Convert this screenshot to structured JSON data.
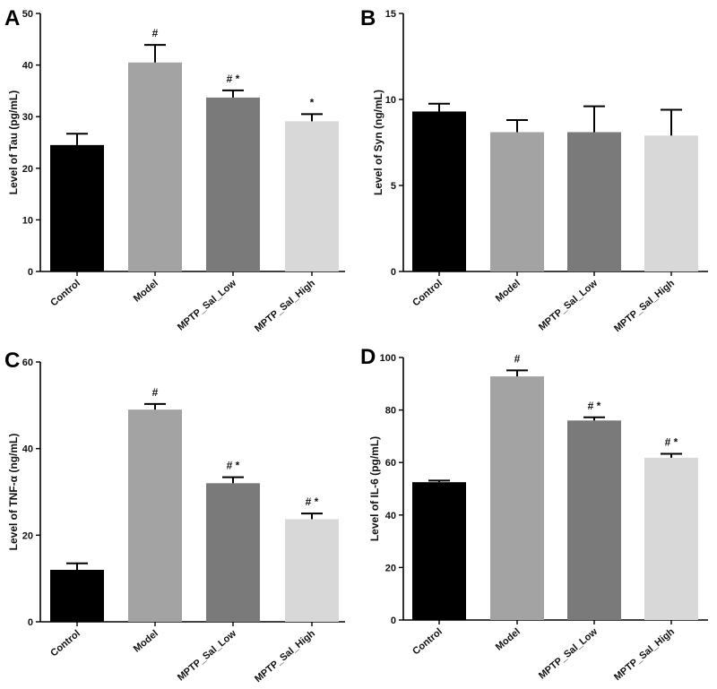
{
  "chart_data": [
    {
      "type": "bar",
      "panel": "A",
      "categories": [
        "Control",
        "Model",
        "MPTP_Sal_Low",
        "MPTP_Sal_High"
      ],
      "values": [
        24.5,
        40.5,
        33.7,
        29.1
      ],
      "errors": [
        2.2,
        3.4,
        1.4,
        1.4
      ],
      "annotations": [
        "",
        "#",
        "# *",
        "*"
      ],
      "colors": [
        "#000000",
        "#a3a3a3",
        "#7a7a7a",
        "#d8d8d8"
      ],
      "ylabel": "Level of Tau (pg/mL)",
      "ylim": [
        0,
        50
      ],
      "yticks": [
        0,
        10,
        20,
        30,
        40,
        50
      ]
    },
    {
      "type": "bar",
      "panel": "B",
      "categories": [
        "Control",
        "Model",
        "MPTP_Sal_Low",
        "MPTP_Sal_High"
      ],
      "values": [
        9.3,
        8.1,
        8.1,
        7.9
      ],
      "errors": [
        0.45,
        0.7,
        1.5,
        1.5
      ],
      "annotations": [
        "",
        "",
        "",
        ""
      ],
      "colors": [
        "#000000",
        "#a3a3a3",
        "#7a7a7a",
        "#d8d8d8"
      ],
      "ylabel": "Level of Syn (ng/mL)",
      "ylim": [
        0,
        15
      ],
      "yticks": [
        0,
        5,
        10,
        15
      ]
    },
    {
      "type": "bar",
      "panel": "C",
      "categories": [
        "Control",
        "Model",
        "MPTP_Sal_Low",
        "MPTP_Sal_High"
      ],
      "values": [
        12.0,
        49.0,
        32.0,
        23.7
      ],
      "errors": [
        1.5,
        1.3,
        1.4,
        1.3
      ],
      "annotations": [
        "",
        "#",
        "# *",
        "# *"
      ],
      "colors": [
        "#000000",
        "#a3a3a3",
        "#7a7a7a",
        "#d8d8d8"
      ],
      "ylabel": "Level of TNF-α (ng/mL)",
      "ylim": [
        0,
        60
      ],
      "yticks": [
        0,
        20,
        40,
        60
      ]
    },
    {
      "type": "bar",
      "panel": "D",
      "categories": [
        "Control",
        "Model",
        "MPTP_Sal_Low",
        "MPTP_Sal_High"
      ],
      "values": [
        52.5,
        92.8,
        76.0,
        61.8
      ],
      "errors": [
        0.6,
        2.3,
        1.2,
        1.5
      ],
      "annotations": [
        "",
        "#",
        "# *",
        "# *"
      ],
      "colors": [
        "#000000",
        "#a3a3a3",
        "#7a7a7a",
        "#d8d8d8"
      ],
      "ylabel": "Level of IL-6 (pg/mL)",
      "ylim": [
        0,
        100
      ],
      "yticks": [
        0,
        20,
        40,
        60,
        80,
        100
      ]
    }
  ]
}
